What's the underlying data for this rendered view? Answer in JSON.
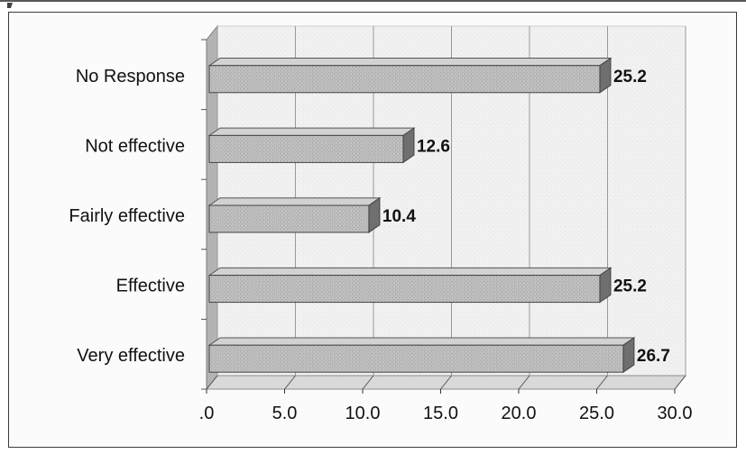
{
  "chart_data": {
    "type": "bar",
    "orientation": "horizontal",
    "style": "3d",
    "categories": [
      "No Response",
      "Not effective",
      "Fairly effective",
      "Effective",
      "Very effective"
    ],
    "values": [
      25.2,
      12.6,
      10.4,
      25.2,
      26.7
    ],
    "data_labels": [
      "25.2",
      "12.6",
      "10.4",
      "25.2",
      "26.7"
    ],
    "x_ticks": [
      ".0",
      "5.0",
      "10.0",
      "15.0",
      "20.0",
      "25.0",
      "30.0"
    ],
    "xlim": [
      0,
      30
    ],
    "grid": true,
    "legend": "none",
    "title": "",
    "xlabel": "",
    "ylabel": "",
    "colors": {
      "bar": "#b9b9b9",
      "bar_top": "#d2d2d2",
      "bar_side": "#6f6f6f",
      "wall": "#efefef",
      "grid": "#9a9a9a"
    }
  }
}
